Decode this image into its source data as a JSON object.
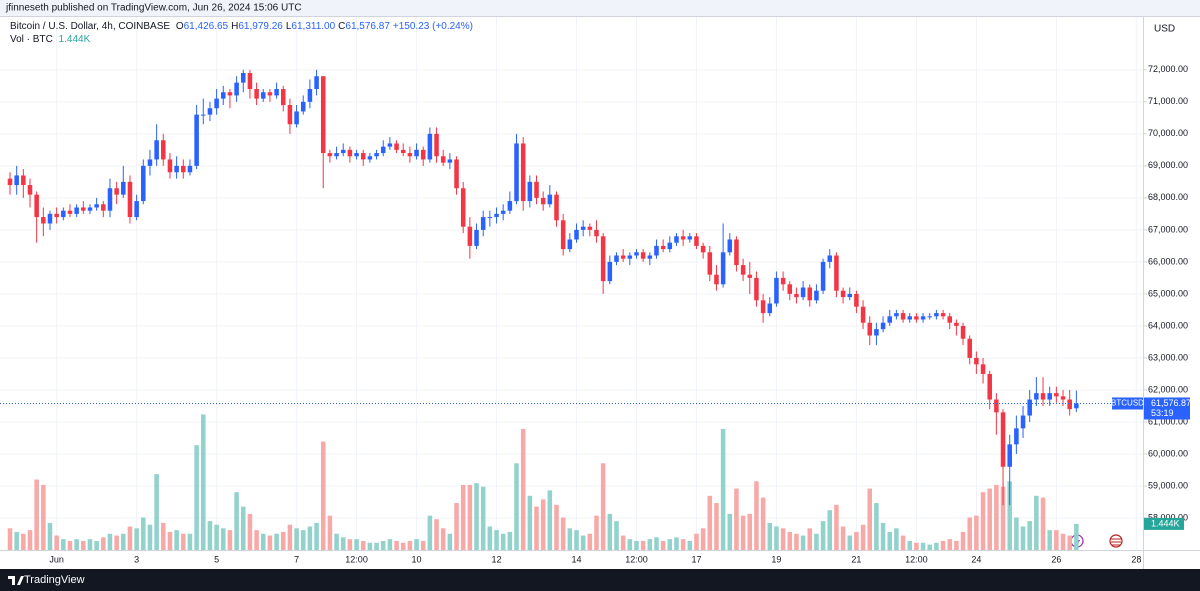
{
  "publisher": "jfinneseth published on TradingView.com, Jun 26, 2024 15:06 UTC",
  "footer_logo": "TradingView",
  "chart_data": {
    "type": "candlestick",
    "legend": {
      "symbol": "Bitcoin / U.S. Dollar, 4h, COINBASE",
      "ohlc": [
        {
          "key": "O",
          "value": "61,426.65"
        },
        {
          "key": "H",
          "value": "61,979.26"
        },
        {
          "key": "L",
          "value": "61,311.00"
        },
        {
          "key": "C",
          "value": "61,576.87"
        }
      ],
      "change": "+150.23 (+0.24%)",
      "volume_name": "Vol · BTC",
      "volume_value": "1.444K"
    },
    "currency": "USD",
    "price_label": {
      "symbol": "BTCUSD",
      "price": "61,576.87",
      "countdown": "53:19"
    },
    "volume_label": "1.444K",
    "up_color": "#2962ff",
    "down_color": "#f23645",
    "volume_up_color": "#92d2cc",
    "volume_down_color": "#f7a9a7",
    "grid": true,
    "xlim": [
      -1.5,
      170
    ],
    "xticks": [
      {
        "value": 7,
        "label": "Jun"
      },
      {
        "value": 19,
        "label": "3"
      },
      {
        "value": 31,
        "label": "5"
      },
      {
        "value": 43,
        "label": "7"
      },
      {
        "value": 52,
        "label": "12:00"
      },
      {
        "value": 61,
        "label": "10"
      },
      {
        "value": 73,
        "label": "12"
      },
      {
        "value": 85,
        "label": "14"
      },
      {
        "value": 94,
        "label": "12:00"
      },
      {
        "value": 103,
        "label": "17"
      },
      {
        "value": 115,
        "label": "19"
      },
      {
        "value": 127,
        "label": "21"
      },
      {
        "value": 136,
        "label": "12:00"
      },
      {
        "value": 145,
        "label": "24"
      },
      {
        "value": 157,
        "label": "26"
      },
      {
        "value": 169,
        "label": "28"
      }
    ],
    "ylim": [
      57000,
      73650
    ],
    "yticks": [
      {
        "value": 58000,
        "label": "58,000.00"
      },
      {
        "value": 59000,
        "label": "59,000.00"
      },
      {
        "value": 60000,
        "label": "60,000.00"
      },
      {
        "value": 61000,
        "label": "61,000.00"
      },
      {
        "value": 62000,
        "label": "62,000.00"
      },
      {
        "value": 63000,
        "label": "63,000.00"
      },
      {
        "value": 64000,
        "label": "64,000.00"
      },
      {
        "value": 65000,
        "label": "65,000.00"
      },
      {
        "value": 66000,
        "label": "66,000.00"
      },
      {
        "value": 67000,
        "label": "67,000.00"
      },
      {
        "value": 68000,
        "label": "68,000.00"
      },
      {
        "value": 69000,
        "label": "69,000.00"
      },
      {
        "value": 70000,
        "label": "70,000.00"
      },
      {
        "value": 71000,
        "label": "71,000.00"
      },
      {
        "value": 72000,
        "label": "72,000.00"
      }
    ],
    "volume_lim": [
      0,
      29.5
    ],
    "candles": [
      [
        68600,
        68800,
        68100,
        68400
      ],
      [
        68400,
        69000,
        68100,
        68700
      ],
      [
        68700,
        68900,
        68000,
        68400
      ],
      [
        68400,
        68600,
        67700,
        68100
      ],
      [
        68100,
        68200,
        66600,
        67400
      ],
      [
        67400,
        67700,
        66800,
        67200
      ],
      [
        67200,
        67600,
        67000,
        67500
      ],
      [
        67500,
        67700,
        67200,
        67400
      ],
      [
        67400,
        67700,
        67300,
        67600
      ],
      [
        67600,
        67800,
        67400,
        67500
      ],
      [
        67500,
        67800,
        67400,
        67700
      ],
      [
        67700,
        67900,
        67500,
        67600
      ],
      [
        67600,
        67800,
        67500,
        67700
      ],
      [
        67700,
        68000,
        67600,
        67800
      ],
      [
        67800,
        67900,
        67400,
        67600
      ],
      [
        67600,
        68600,
        67400,
        68300
      ],
      [
        68300,
        68500,
        67800,
        68100
      ],
      [
        68100,
        69000,
        68000,
        68500
      ],
      [
        68500,
        68700,
        67200,
        67400
      ],
      [
        67400,
        68100,
        67300,
        67900
      ],
      [
        67900,
        69200,
        67800,
        69000
      ],
      [
        69000,
        69500,
        68700,
        69200
      ],
      [
        69200,
        70300,
        69000,
        69800
      ],
      [
        69800,
        70000,
        69000,
        69200
      ],
      [
        69200,
        69400,
        68600,
        68800
      ],
      [
        68800,
        69300,
        68600,
        69000
      ],
      [
        69000,
        69200,
        68600,
        68800
      ],
      [
        68800,
        69200,
        68700,
        69000
      ],
      [
        69000,
        70900,
        68900,
        70600
      ],
      [
        70600,
        71100,
        70300,
        70600
      ],
      [
        70600,
        71000,
        70400,
        70800
      ],
      [
        70800,
        71400,
        70600,
        71100
      ],
      [
        71100,
        71500,
        70900,
        71300
      ],
      [
        71300,
        71400,
        70800,
        71200
      ],
      [
        71200,
        71800,
        71000,
        71600
      ],
      [
        71600,
        72000,
        71300,
        71900
      ],
      [
        71900,
        72000,
        71100,
        71400
      ],
      [
        71400,
        71600,
        70900,
        71100
      ],
      [
        71100,
        71400,
        71000,
        71300
      ],
      [
        71300,
        71400,
        71000,
        71200
      ],
      [
        71200,
        71600,
        71100,
        71400
      ],
      [
        71400,
        71500,
        70700,
        70900
      ],
      [
        70900,
        71100,
        70000,
        70300
      ],
      [
        70300,
        70900,
        70200,
        70700
      ],
      [
        70700,
        71200,
        70600,
        71000
      ],
      [
        71000,
        71700,
        70800,
        71400
      ],
      [
        71400,
        72000,
        71200,
        71800
      ],
      [
        71800,
        71800,
        68300,
        69400
      ],
      [
        69400,
        69500,
        69100,
        69300
      ],
      [
        69300,
        69600,
        69200,
        69400
      ],
      [
        69400,
        69700,
        69300,
        69500
      ],
      [
        69500,
        69600,
        69100,
        69300
      ],
      [
        69300,
        69500,
        69200,
        69400
      ],
      [
        69400,
        69500,
        69000,
        69200
      ],
      [
        69200,
        69400,
        69100,
        69300
      ],
      [
        69300,
        69500,
        69200,
        69400
      ],
      [
        69400,
        69800,
        69300,
        69600
      ],
      [
        69600,
        69900,
        69500,
        69700
      ],
      [
        69700,
        69800,
        69400,
        69500
      ],
      [
        69500,
        69700,
        69300,
        69400
      ],
      [
        69400,
        69600,
        69100,
        69300
      ],
      [
        69300,
        69700,
        69200,
        69500
      ],
      [
        69500,
        69600,
        69000,
        69200
      ],
      [
        69200,
        70200,
        69100,
        70000
      ],
      [
        70000,
        70200,
        69100,
        69300
      ],
      [
        69300,
        69500,
        69000,
        69100
      ],
      [
        69100,
        69400,
        68900,
        69200
      ],
      [
        69200,
        69300,
        68100,
        68300
      ],
      [
        68300,
        68500,
        66900,
        67100
      ],
      [
        67100,
        67400,
        66100,
        66500
      ],
      [
        66500,
        67200,
        66400,
        67000
      ],
      [
        67000,
        67600,
        66800,
        67400
      ],
      [
        67400,
        67600,
        67100,
        67400
      ],
      [
        67400,
        67700,
        67200,
        67500
      ],
      [
        67500,
        67800,
        67300,
        67600
      ],
      [
        67600,
        68200,
        67500,
        67900
      ],
      [
        67900,
        70000,
        67800,
        69700
      ],
      [
        69700,
        69900,
        67600,
        67900
      ],
      [
        67900,
        68700,
        67700,
        68500
      ],
      [
        68500,
        68700,
        67800,
        68000
      ],
      [
        68000,
        68200,
        67600,
        67800
      ],
      [
        67800,
        68400,
        67700,
        68100
      ],
      [
        68100,
        68200,
        67100,
        67300
      ],
      [
        67300,
        67500,
        66200,
        66400
      ],
      [
        66400,
        66900,
        66300,
        66700
      ],
      [
        66700,
        67200,
        66600,
        67000
      ],
      [
        67000,
        67300,
        66800,
        67100
      ],
      [
        67100,
        67200,
        66800,
        67000
      ],
      [
        67000,
        67300,
        66600,
        66800
      ],
      [
        66800,
        66900,
        65000,
        65400
      ],
      [
        65400,
        66200,
        65300,
        66000
      ],
      [
        66000,
        66300,
        65900,
        66200
      ],
      [
        66200,
        66400,
        66000,
        66100
      ],
      [
        66100,
        66300,
        65900,
        66200
      ],
      [
        66200,
        66400,
        66100,
        66300
      ],
      [
        66300,
        66400,
        66000,
        66100
      ],
      [
        66100,
        66300,
        65900,
        66200
      ],
      [
        66200,
        66700,
        66100,
        66500
      ],
      [
        66500,
        66700,
        66300,
        66400
      ],
      [
        66400,
        66800,
        66300,
        66600
      ],
      [
        66600,
        66900,
        66500,
        66800
      ],
      [
        66800,
        67000,
        66500,
        66700
      ],
      [
        66700,
        66900,
        66600,
        66800
      ],
      [
        66800,
        66900,
        66400,
        66500
      ],
      [
        66500,
        66600,
        66100,
        66300
      ],
      [
        66300,
        66500,
        65400,
        65600
      ],
      [
        65600,
        65900,
        65100,
        65300
      ],
      [
        65300,
        67200,
        65200,
        66300
      ],
      [
        66300,
        66900,
        66200,
        66700
      ],
      [
        66700,
        66800,
        65700,
        65900
      ],
      [
        65900,
        66100,
        65400,
        65600
      ],
      [
        65600,
        66000,
        65000,
        65500
      ],
      [
        65500,
        65700,
        64600,
        64800
      ],
      [
        64800,
        65000,
        64100,
        64400
      ],
      [
        64400,
        64900,
        64300,
        64700
      ],
      [
        64700,
        65700,
        64600,
        65500
      ],
      [
        65500,
        65700,
        65100,
        65300
      ],
      [
        65300,
        65400,
        64800,
        65000
      ],
      [
        65000,
        65200,
        64700,
        64900
      ],
      [
        64900,
        65400,
        64800,
        65200
      ],
      [
        65200,
        65300,
        64600,
        64800
      ],
      [
        64800,
        65300,
        64700,
        65100
      ],
      [
        65100,
        66100,
        65000,
        66000
      ],
      [
        66000,
        66400,
        65800,
        66200
      ],
      [
        66200,
        66300,
        64900,
        65100
      ],
      [
        65100,
        65200,
        64700,
        64900
      ],
      [
        64900,
        65200,
        64800,
        65000
      ],
      [
        65000,
        65100,
        64400,
        64600
      ],
      [
        64600,
        64800,
        63900,
        64100
      ],
      [
        64100,
        64300,
        63400,
        63700
      ],
      [
        63700,
        64100,
        63400,
        63900
      ],
      [
        63900,
        64300,
        63800,
        64100
      ],
      [
        64100,
        64500,
        64000,
        64300
      ],
      [
        64300,
        64500,
        64200,
        64400
      ],
      [
        64400,
        64500,
        64100,
        64200
      ],
      [
        64200,
        64400,
        64100,
        64300
      ],
      [
        64300,
        64400,
        64100,
        64200
      ],
      [
        64200,
        64400,
        64100,
        64300
      ],
      [
        64300,
        64400,
        64200,
        64300
      ],
      [
        64300,
        64500,
        64200,
        64400
      ],
      [
        64400,
        64500,
        64200,
        64300
      ],
      [
        64300,
        64400,
        63900,
        64100
      ],
      [
        64100,
        64200,
        63700,
        64000
      ],
      [
        64000,
        64100,
        63400,
        63600
      ],
      [
        63600,
        63700,
        62800,
        63000
      ],
      [
        63000,
        63200,
        62500,
        62800
      ],
      [
        62800,
        63000,
        62200,
        62500
      ],
      [
        62500,
        62600,
        61400,
        61700
      ],
      [
        61700,
        61900,
        60600,
        61300
      ],
      [
        61300,
        61400,
        58400,
        59600
      ],
      [
        59600,
        60600,
        58400,
        60300
      ],
      [
        60300,
        61200,
        60000,
        60800
      ],
      [
        60800,
        61500,
        60500,
        61200
      ],
      [
        61200,
        62000,
        61000,
        61700
      ],
      [
        61700,
        62400,
        61500,
        61900
      ],
      [
        61900,
        62400,
        61500,
        61700
      ],
      [
        61700,
        62100,
        61500,
        61900
      ],
      [
        61900,
        62100,
        61600,
        61800
      ],
      [
        61800,
        62000,
        61500,
        61700
      ],
      [
        61700,
        62000,
        61200,
        61400
      ],
      [
        61426.65,
        61979.26,
        61311.0,
        61576.87
      ]
    ],
    "volume": [
      1.2,
      1.0,
      0.9,
      1.1,
      3.9,
      3.6,
      1.5,
      0.8,
      0.6,
      0.5,
      0.6,
      0.5,
      0.6,
      0.5,
      0.7,
      0.9,
      0.8,
      0.9,
      1.3,
      1.2,
      1.8,
      1.4,
      4.2,
      1.5,
      1.0,
      1.1,
      0.9,
      0.9,
      5.8,
      7.5,
      1.6,
      1.4,
      1.2,
      1.1,
      3.2,
      2.4,
      2.0,
      1.1,
      0.9,
      0.8,
      0.9,
      1.0,
      1.4,
      1.2,
      1.1,
      1.3,
      1.5,
      6.0,
      1.9,
      0.9,
      0.7,
      0.6,
      0.6,
      0.5,
      0.4,
      0.4,
      0.5,
      0.6,
      0.5,
      0.4,
      0.5,
      0.6,
      0.5,
      1.9,
      1.7,
      1.2,
      0.9,
      2.6,
      3.6,
      3.6,
      3.7,
      3.5,
      1.3,
      1.1,
      0.9,
      1.0,
      4.8,
      6.7,
      3.0,
      2.4,
      2.8,
      3.3,
      2.5,
      1.8,
      1.2,
      1.1,
      0.8,
      0.9,
      1.9,
      4.8,
      2.0,
      1.6,
      0.8,
      0.6,
      0.5,
      0.5,
      0.6,
      0.7,
      0.5,
      0.6,
      0.7,
      0.6,
      0.5,
      0.9,
      1.2,
      3.0,
      2.6,
      6.7,
      2.0,
      3.4,
      1.9,
      2.0,
      3.8,
      2.9,
      1.5,
      1.3,
      1.2,
      1.0,
      0.9,
      0.8,
      1.2,
      0.9,
      1.6,
      2.2,
      2.5,
      1.3,
      0.8,
      1.0,
      1.4,
      3.4,
      2.6,
      1.5,
      1.0,
      1.2,
      0.8,
      0.5,
      0.4,
      0.4,
      0.3,
      0.4,
      0.5,
      0.6,
      0.5,
      1.0,
      1.8,
      1.9,
      3.2,
      3.4,
      3.6,
      3.5,
      3.8,
      1.8,
      1.3,
      1.6,
      3.0,
      2.9,
      1.1,
      1.1,
      0.9,
      0.8,
      1.444
    ]
  }
}
